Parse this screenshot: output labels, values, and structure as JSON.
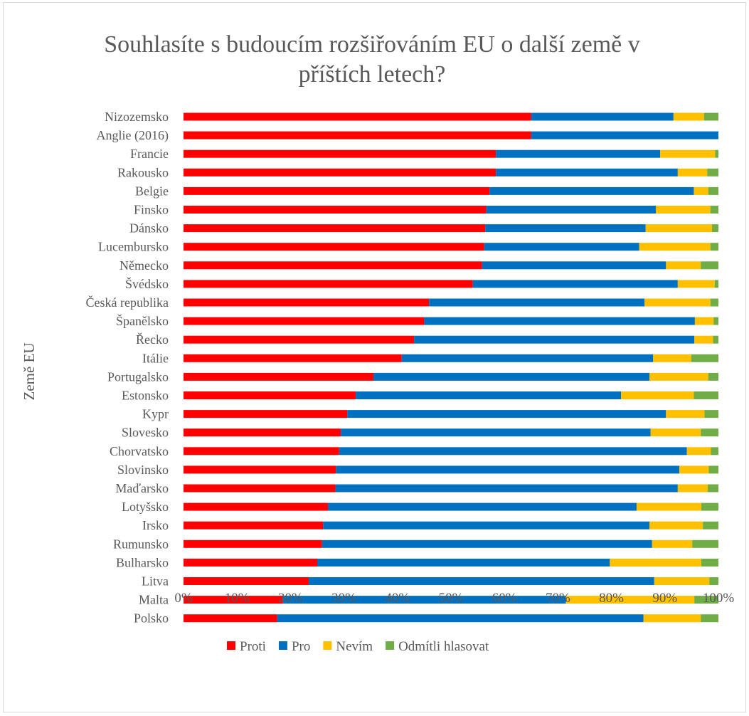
{
  "chart_data": {
    "type": "bar",
    "orientation": "horizontal",
    "stacked": "percent",
    "title_lines": [
      "Souhlasíte s budoucím rozšiřováním EU o další země v",
      "příštích letech?"
    ],
    "ylabel": "Země EU",
    "xlabel": "",
    "xlim": [
      0,
      100
    ],
    "x_ticks": [
      "0%",
      "10%",
      "20%",
      "30%",
      "40%",
      "50%",
      "60%",
      "70%",
      "80%",
      "90%",
      "100%"
    ],
    "grid": false,
    "legend_position": "bottom",
    "categories": [
      "Nizozemsko",
      "Anglie (2016)",
      "Francie",
      "Rakousko",
      "Belgie",
      "Finsko",
      "Dánsko",
      "Lucembursko",
      "Německo",
      "Švédsko",
      "Česká republika",
      "Španělsko",
      "Řecko",
      "Itálie",
      "Portugalsko",
      "Estonsko",
      "Kypr",
      "Slovesko",
      "Chorvatsko",
      "Slovinsko",
      "Maďarsko",
      "Lotyšsko",
      "Irsko",
      "Rumunsko",
      "Bulharsko",
      "Litva",
      "Malta",
      "Polsko"
    ],
    "series": [
      {
        "name": "Proti",
        "color": "#ff0000",
        "values": [
          65,
          65,
          58.4,
          58.4,
          57.2,
          56.6,
          56.4,
          56.2,
          55.8,
          54.1,
          45.9,
          45,
          43.1,
          40.8,
          35.5,
          32.2,
          30.6,
          29.4,
          29.1,
          28.5,
          28.4,
          27,
          26.1,
          25.9,
          25,
          23.4,
          18.6,
          17.5
        ]
      },
      {
        "name": "Pro",
        "color": "#0070c0",
        "values": [
          26.6,
          35,
          30.7,
          34,
          38.2,
          31.7,
          30,
          29,
          34.4,
          38.3,
          40.3,
          50.6,
          52.4,
          47,
          51.6,
          49.6,
          59.6,
          57.9,
          65,
          64.2,
          64,
          57.7,
          61,
          61.7,
          54.7,
          64.6,
          52.9,
          68.5
        ]
      },
      {
        "name": "Nevím",
        "color": "#ffc000",
        "values": [
          5.7,
          0,
          10.3,
          5.5,
          2.7,
          10.2,
          12.4,
          13.3,
          6.5,
          6.9,
          12.3,
          3.5,
          3.5,
          7.1,
          11,
          13.6,
          7.2,
          9.4,
          4.5,
          5.5,
          5.6,
          12.1,
          10,
          7.5,
          17.1,
          10.3,
          24,
          10.7
        ]
      },
      {
        "name": "Odmítli hlasovat",
        "color": "#70ad47",
        "values": [
          2.7,
          0,
          0.6,
          2.1,
          1.9,
          1.5,
          1.2,
          1.5,
          3.3,
          0.7,
          1.5,
          0.9,
          1,
          5.1,
          1.9,
          4.6,
          2.6,
          3.3,
          1.4,
          1.8,
          2,
          3.2,
          2.9,
          4.9,
          3.2,
          1.7,
          4.5,
          3.3
        ]
      }
    ]
  }
}
